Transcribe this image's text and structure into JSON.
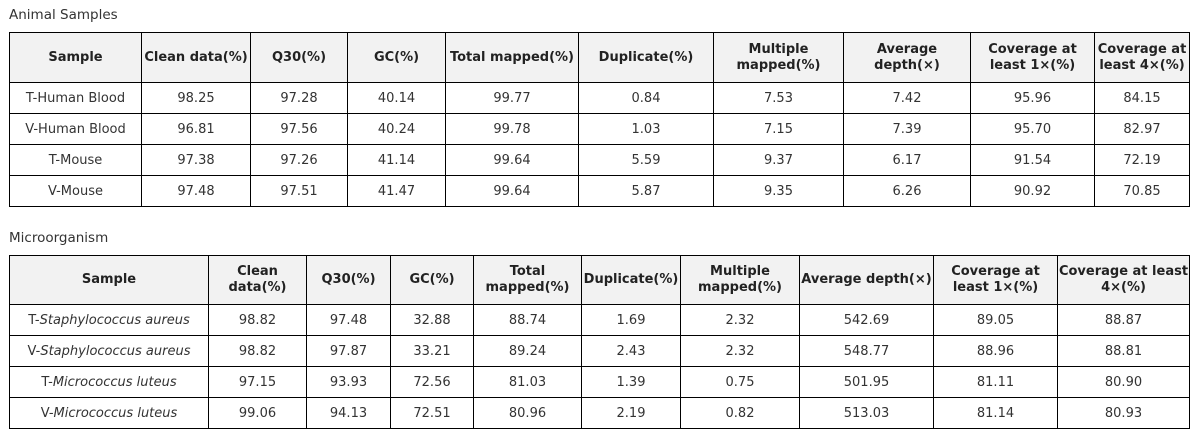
{
  "animal": {
    "title": "Animal Samples",
    "headers": [
      "Sample",
      "Clean data(%)",
      "Q30(%)",
      "GC(%)",
      "Total mapped(%)",
      "Duplicate(%)",
      "Multiple mapped(%)",
      "Average depth(×)",
      "Coverage at least 1×(%)",
      "Coverage at least 4×(%)"
    ],
    "rows": [
      {
        "sample_prefix": "T-Human Blood",
        "sample_italic": "",
        "values": [
          "98.25",
          "97.28",
          "40.14",
          "99.77",
          "0.84",
          "7.53",
          "7.42",
          "95.96",
          "84.15"
        ]
      },
      {
        "sample_prefix": "V-Human Blood",
        "sample_italic": "",
        "values": [
          "96.81",
          "97.56",
          "40.24",
          "99.78",
          "1.03",
          "7.15",
          "7.39",
          "95.70",
          "82.97"
        ]
      },
      {
        "sample_prefix": "T-Mouse",
        "sample_italic": "",
        "values": [
          "97.38",
          "97.26",
          "41.14",
          "99.64",
          "5.59",
          "9.37",
          "6.17",
          "91.54",
          "72.19"
        ]
      },
      {
        "sample_prefix": "V-Mouse",
        "sample_italic": "",
        "values": [
          "97.48",
          "97.51",
          "41.47",
          "99.64",
          "5.87",
          "9.35",
          "6.26",
          "90.92",
          "70.85"
        ]
      }
    ]
  },
  "micro": {
    "title": "Microorganism",
    "headers": [
      "Sample",
      "Clean data(%)",
      "Q30(%)",
      "GC(%)",
      "Total mapped(%)",
      "Duplicate(%)",
      "Multiple mapped(%)",
      "Average depth(×)",
      "Coverage at least 1×(%)",
      "Coverage at least 4×(%)"
    ],
    "rows": [
      {
        "sample_prefix": "T-",
        "sample_italic": "Staphylococcus aureus",
        "values": [
          "98.82",
          "97.48",
          "32.88",
          "88.74",
          "1.69",
          "2.32",
          "542.69",
          "89.05",
          "88.87"
        ]
      },
      {
        "sample_prefix": "V-",
        "sample_italic": "Staphylococcus aureus",
        "values": [
          "98.82",
          "97.87",
          "33.21",
          "89.24",
          "2.43",
          "2.32",
          "548.77",
          "88.96",
          "88.81"
        ]
      },
      {
        "sample_prefix": "T-",
        "sample_italic": "Micrococcus luteus",
        "values": [
          "97.15",
          "93.93",
          "72.56",
          "81.03",
          "1.39",
          "0.75",
          "501.95",
          "81.11",
          "80.90"
        ]
      },
      {
        "sample_prefix": "V-",
        "sample_italic": "Micrococcus luteus",
        "values": [
          "99.06",
          "94.13",
          "72.51",
          "80.96",
          "2.19",
          "0.82",
          "513.03",
          "81.14",
          "80.93"
        ]
      }
    ]
  }
}
